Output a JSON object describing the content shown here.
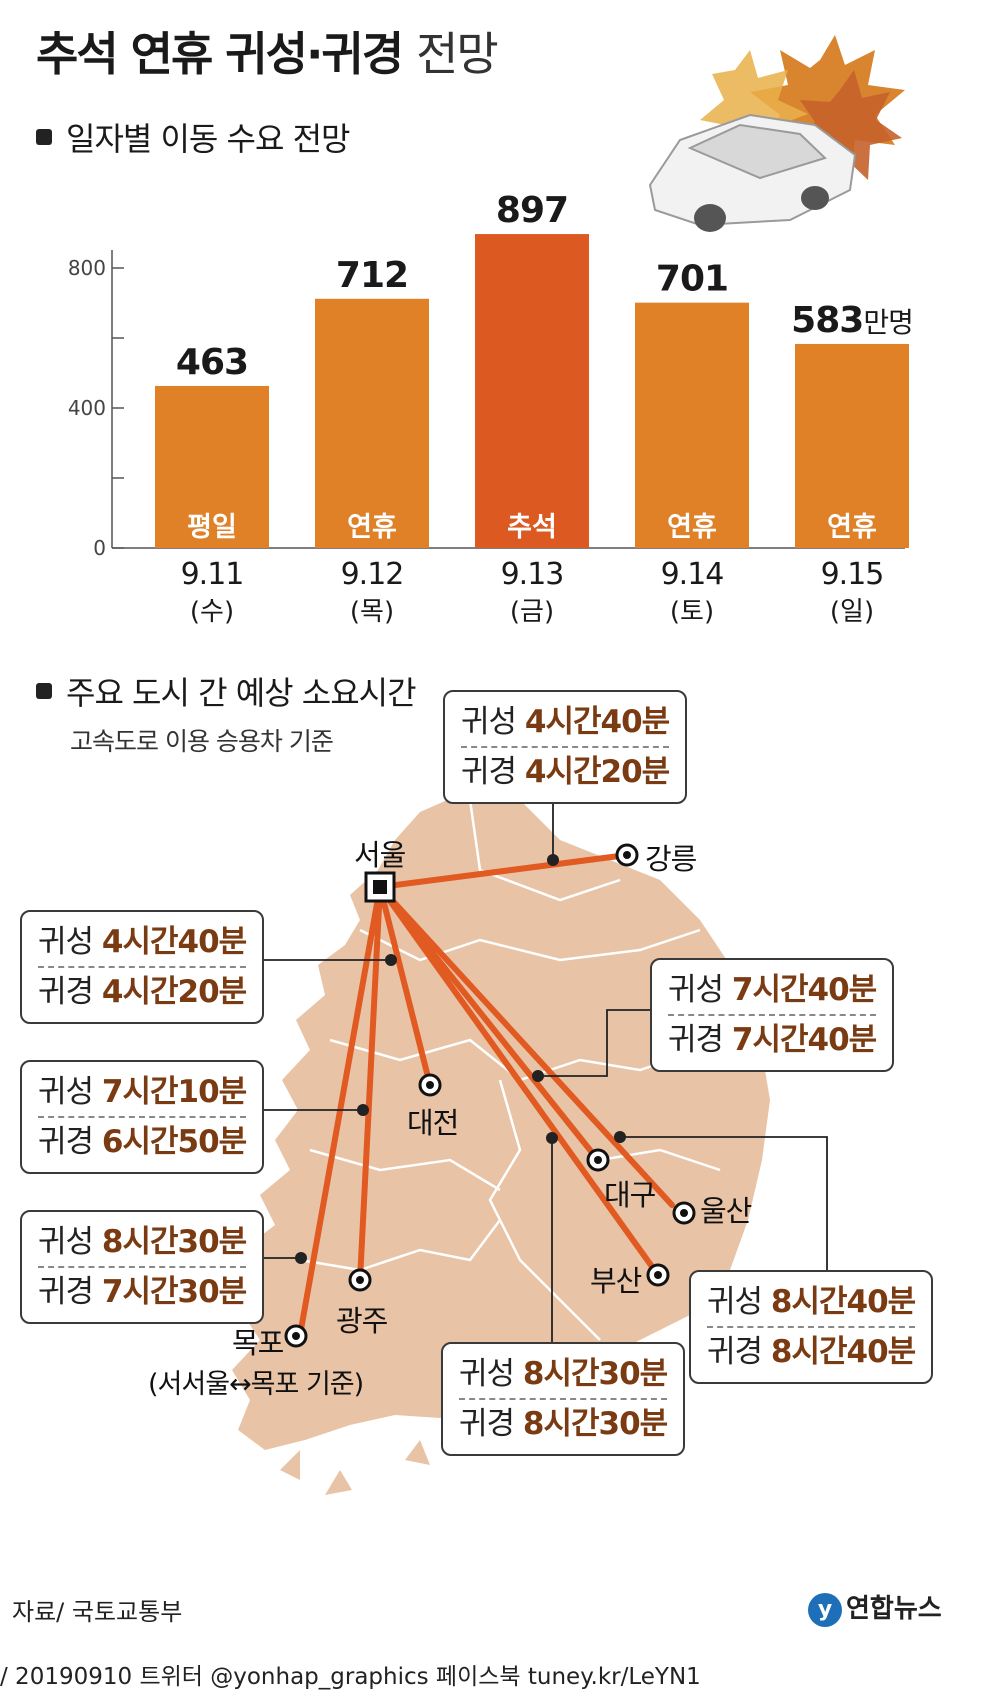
{
  "title": {
    "bold": "추석 연휴 귀성·귀경",
    "light": "전망"
  },
  "section1": "일자별 이동 수요 전망",
  "section2": "주요 도시 간 예상 소요시간",
  "section2_sub": "고속도로 이용 승용차 기준",
  "chart_data": {
    "type": "bar",
    "title": "일자별 이동 수요 전망",
    "categories": [
      "9.11",
      "9.12",
      "9.13",
      "9.14",
      "9.15"
    ],
    "weekdays": [
      "(수)",
      "(목)",
      "(금)",
      "(토)",
      "(일)"
    ],
    "bar_labels": [
      "평일",
      "연휴",
      "추석",
      "연휴",
      "연휴"
    ],
    "values": [
      463,
      712,
      897,
      701,
      583
    ],
    "value_labels": [
      "463",
      "712",
      "897",
      "701",
      "583"
    ],
    "unit": "만명",
    "ylim": [
      0,
      900
    ],
    "yticks": [
      0,
      400,
      800
    ],
    "ytick_labels": [
      "0",
      "400",
      "800"
    ],
    "colors": {
      "normal": "#e08128",
      "highlight": "#dc5a22",
      "highlight_text": "#c2271c"
    },
    "highlight_index": 2,
    "grid": false
  },
  "map": {
    "land_color": "#e8c3a6",
    "route_color": "#e05a22",
    "cities": {
      "seoul": "서울",
      "gangneung": "강릉",
      "daejeon": "대전",
      "daegu": "대구",
      "ulsan": "울산",
      "busan": "부산",
      "gwangju": "광주",
      "mokpo": "목포",
      "mokpo_note": "(서서울↔목포 기준)"
    },
    "labels": {
      "out": "귀성",
      "back": "귀경"
    },
    "routes": {
      "gangneung": {
        "out": "4시간40분",
        "back": "4시간20분"
      },
      "daejeon": {
        "out": "4시간40분",
        "back": "4시간20분"
      },
      "gwangju": {
        "out": "7시간10분",
        "back": "6시간50분"
      },
      "mokpo": {
        "out": "8시간30분",
        "back": "7시간30분"
      },
      "daegu": {
        "out": "7시간40분",
        "back": "7시간40분"
      },
      "ulsan": {
        "out": "8시간40분",
        "back": "8시간40분"
      },
      "busan": {
        "out": "8시간30분",
        "back": "8시간30분"
      }
    }
  },
  "source": "자료/ 국토교통부",
  "logo": {
    "mark": "y",
    "name": "연합뉴스"
  },
  "footer": "/ 20190910 트위터 @yonhap_graphics  페이스북 tuney.kr/LeYN1"
}
